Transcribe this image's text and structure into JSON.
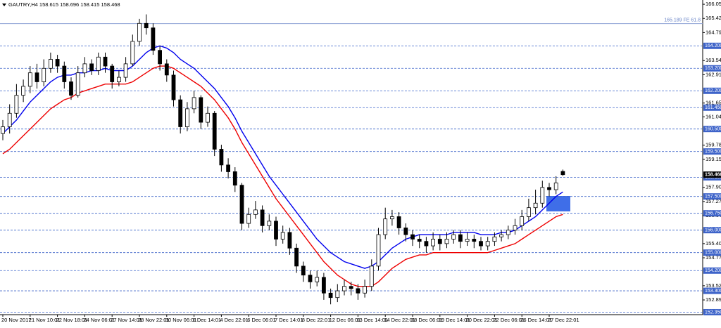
{
  "chart_data": {
    "type": "candlestick",
    "header": "GAUTRY,H4 158.615 158.696 158.415 158.468",
    "ylim": [
      152.24,
      166.24
    ],
    "yticks": [
      {
        "value": 166.05,
        "label": "166.050"
      },
      {
        "value": 165.42,
        "label": "165.420"
      },
      {
        "value": 164.79,
        "label": "164.790"
      },
      163.545,
      162.915,
      161.655,
      {
        "value": 161.04,
        "label": "161.040"
      },
      {
        "value": 159.78,
        "label": "159.780"
      },
      {
        "value": 159.15,
        "label": "159.150"
      },
      157.905,
      157.275,
      156.645,
      {
        "value": 155.4,
        "label": "155.400"
      },
      {
        "value": 154.77,
        "label": "154.770"
      },
      153.525,
      152.895
    ],
    "levels": [
      {
        "value": 164.2,
        "label": "164.200"
      },
      {
        "value": 163.2,
        "label": "163.200"
      },
      {
        "value": 162.2,
        "label": "162.200"
      },
      {
        "value": 161.45,
        "label": "161.450"
      },
      {
        "value": 160.5,
        "label": "160.500"
      },
      {
        "value": 159.5,
        "label": "159.500"
      },
      {
        "value": 158.35,
        "label": "158.350"
      },
      {
        "value": 157.5,
        "label": "157.500"
      },
      {
        "value": 156.75,
        "label": "156.750"
      },
      {
        "value": 156.0,
        "label": "156.000"
      },
      {
        "value": 155.0,
        "label": "155.000"
      },
      {
        "value": 154.2,
        "label": "154.200"
      },
      {
        "value": 153.3,
        "label": "153.300"
      },
      {
        "value": 152.35,
        "label": "152.350"
      }
    ],
    "level_color": "#3d63c9",
    "annotations": [
      {
        "value": 165.189,
        "label": "165.189 FE 61.8"
      }
    ],
    "categories": [
      "20 Nov 2017",
      null,
      null,
      null,
      "21 Nov 10:01",
      null,
      null,
      null,
      "22 Nov 18:01",
      null,
      null,
      null,
      "24 Nov 06:01",
      null,
      null,
      null,
      "27 Nov 14:01",
      null,
      null,
      null,
      "28 Nov 22:01",
      null,
      null,
      null,
      "30 Nov 06:01",
      null,
      null,
      null,
      "1 Dec 14:01",
      null,
      null,
      null,
      "4 Dec 22:01",
      null,
      null,
      null,
      "6 Dec 06:01",
      null,
      null,
      null,
      "7 Dec 14:01",
      null,
      null,
      null,
      "8 Dec 22:01",
      null,
      null,
      null,
      "12 Dec 06:01",
      null,
      null,
      null,
      "13 Dec 14:01",
      null,
      null,
      null,
      "14 Dec 22:01",
      null,
      null,
      null,
      "18 Dec 06:01",
      null,
      null,
      null,
      "19 Dec 14:01",
      null,
      null,
      null,
      "20 Dec 22:01",
      null,
      null,
      null,
      "22 Dec 06:01",
      null,
      null,
      null,
      "26 Dec 14:01",
      null,
      null,
      null,
      "27 Dec 22:01",
      null,
      null
    ],
    "open": [
      160.3,
      160.6,
      161.2,
      162.0,
      162.4,
      163.0,
      162.6,
      163.2,
      163.6,
      163.3,
      162.6,
      162.0,
      163.0,
      163.4,
      163.1,
      163.7,
      163.3,
      162.6,
      162.8,
      163.4,
      164.4,
      165.2,
      165.0,
      164.0,
      163.4,
      162.9,
      161.8,
      160.6,
      161.4,
      161.9,
      160.8,
      161.2,
      159.6,
      158.9,
      158.6,
      158.0,
      156.3,
      156.7,
      156.9,
      156.2,
      156.4,
      155.6,
      155.9,
      155.2,
      154.4,
      154.0,
      153.7,
      153.9,
      153.2,
      153.0,
      153.3,
      153.5,
      153.4,
      153.2,
      153.5,
      154.4,
      155.8,
      156.5,
      156.6,
      156.1,
      155.8,
      155.6,
      155.5,
      155.3,
      155.6,
      155.4,
      155.6,
      155.8,
      155.5,
      155.6,
      155.5,
      155.3,
      155.5,
      155.7,
      155.8,
      156.0,
      156.2,
      156.6,
      157.0,
      157.2,
      157.9,
      157.8,
      158.615
    ],
    "high": [
      160.9,
      161.6,
      162.5,
      162.7,
      163.3,
      163.4,
      163.6,
      163.9,
      163.8,
      163.5,
      162.8,
      163.3,
      163.7,
      163.6,
      163.9,
      163.9,
      163.4,
      163.1,
      163.7,
      164.7,
      165.4,
      165.6,
      165.2,
      164.2,
      163.6,
      163.1,
      162.0,
      161.7,
      162.2,
      162.0,
      161.5,
      161.3,
      159.8,
      159.2,
      158.8,
      158.1,
      157.0,
      157.3,
      157.1,
      156.7,
      156.6,
      156.2,
      156.1,
      155.4,
      154.6,
      154.2,
      154.2,
      154.1,
      153.4,
      153.6,
      153.8,
      153.7,
      153.6,
      153.8,
      154.7,
      156.1,
      157.0,
      156.9,
      156.8,
      156.3,
      156.0,
      155.8,
      155.7,
      155.9,
      155.8,
      155.9,
      156.0,
      156.0,
      155.9,
      155.8,
      155.7,
      155.7,
      155.9,
      156.0,
      156.2,
      156.5,
      156.9,
      157.4,
      157.8,
      158.2,
      158.1,
      158.4,
      158.696
    ],
    "low": [
      160.0,
      160.3,
      161.0,
      161.7,
      162.1,
      162.3,
      162.4,
      163.0,
      163.0,
      162.3,
      161.8,
      161.9,
      162.8,
      162.9,
      162.9,
      163.0,
      162.3,
      162.4,
      162.6,
      163.3,
      164.2,
      164.7,
      163.8,
      163.1,
      162.6,
      161.5,
      160.3,
      160.4,
      161.2,
      160.5,
      160.6,
      159.3,
      158.6,
      158.3,
      157.7,
      156.0,
      156.1,
      156.5,
      155.9,
      156.0,
      155.3,
      155.4,
      154.9,
      154.1,
      153.7,
      153.4,
      153.5,
      152.9,
      152.7,
      152.8,
      153.1,
      153.1,
      152.9,
      153.0,
      153.3,
      154.2,
      155.6,
      156.2,
      155.8,
      155.5,
      155.3,
      155.2,
      155.0,
      155.1,
      155.1,
      155.2,
      155.4,
      155.2,
      155.3,
      155.2,
      155.1,
      155.1,
      155.3,
      155.5,
      155.6,
      155.8,
      156.0,
      156.4,
      156.7,
      157.0,
      157.5,
      157.6,
      158.415
    ],
    "close": [
      160.6,
      161.2,
      162.0,
      162.4,
      163.0,
      162.6,
      163.2,
      163.6,
      163.3,
      162.6,
      162.0,
      163.0,
      163.4,
      163.1,
      163.7,
      163.3,
      162.6,
      162.8,
      163.4,
      164.4,
      165.2,
      165.0,
      164.0,
      163.4,
      162.9,
      161.8,
      160.6,
      161.4,
      161.9,
      160.8,
      161.2,
      159.6,
      158.9,
      158.6,
      158.0,
      156.3,
      156.7,
      156.9,
      156.2,
      156.4,
      155.6,
      155.9,
      155.2,
      154.4,
      154.0,
      153.7,
      153.9,
      153.2,
      153.0,
      153.3,
      153.5,
      153.4,
      153.2,
      153.5,
      154.4,
      155.8,
      156.5,
      156.6,
      156.1,
      155.8,
      155.6,
      155.5,
      155.3,
      155.6,
      155.4,
      155.6,
      155.8,
      155.5,
      155.6,
      155.5,
      155.3,
      155.5,
      155.7,
      155.8,
      156.0,
      156.2,
      156.6,
      157.0,
      157.2,
      157.9,
      157.8,
      158.1,
      158.468
    ],
    "series": [
      {
        "color": "#0000ee",
        "values": [
          160.3,
          160.6,
          160.9,
          161.3,
          161.7,
          162.0,
          162.3,
          162.6,
          162.8,
          162.9,
          162.9,
          163.0,
          163.0,
          163.1,
          163.1,
          163.2,
          163.1,
          163.1,
          163.1,
          163.3,
          163.6,
          163.9,
          164.1,
          164.2,
          164.1,
          163.9,
          163.6,
          163.4,
          163.2,
          162.9,
          162.6,
          162.3,
          161.9,
          161.5,
          161.0,
          160.4,
          159.9,
          159.4,
          158.9,
          158.4,
          158.0,
          157.6,
          157.2,
          156.8,
          156.4,
          156.0,
          155.6,
          155.3,
          155.0,
          154.8,
          154.6,
          154.5,
          154.4,
          154.3,
          154.4,
          154.6,
          154.9,
          155.2,
          155.4,
          155.6,
          155.7,
          155.8,
          155.8,
          155.8,
          155.8,
          155.8,
          155.9,
          155.9,
          155.9,
          155.9,
          155.8,
          155.8,
          155.8,
          155.9,
          155.9,
          156.0,
          156.2,
          156.4,
          156.6,
          156.9,
          157.2,
          157.5,
          157.7
        ]
      },
      {
        "color": "#ee0000",
        "values": [
          159.4,
          159.6,
          159.9,
          160.2,
          160.5,
          160.8,
          161.1,
          161.4,
          161.6,
          161.8,
          161.9,
          162.1,
          162.2,
          162.3,
          162.4,
          162.5,
          162.5,
          162.5,
          162.5,
          162.6,
          162.8,
          163.0,
          163.2,
          163.3,
          163.3,
          163.2,
          163.0,
          162.8,
          162.6,
          162.4,
          162.1,
          161.8,
          161.4,
          161.0,
          160.5,
          159.9,
          159.4,
          158.9,
          158.4,
          157.9,
          157.4,
          157.0,
          156.6,
          156.2,
          155.8,
          155.4,
          155.0,
          154.6,
          154.3,
          154.0,
          153.8,
          153.6,
          153.5,
          153.5,
          153.5,
          153.7,
          154.0,
          154.3,
          154.5,
          154.7,
          154.8,
          154.9,
          154.9,
          155.0,
          155.0,
          155.0,
          155.0,
          155.0,
          155.0,
          155.0,
          155.0,
          155.0,
          155.1,
          155.2,
          155.3,
          155.4,
          155.6,
          155.8,
          156.0,
          156.2,
          156.4,
          156.6,
          156.7
        ]
      }
    ]
  }
}
